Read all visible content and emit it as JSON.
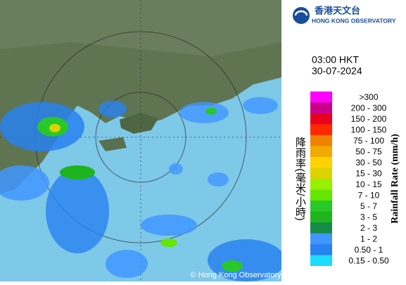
{
  "header": {
    "org_chinese": "香港天文台",
    "org_english": "HONG KONG OBSERVATORY"
  },
  "time": "03:00 HKT",
  "date": "30-07-2024",
  "legend": {
    "title_chinese": "降雨率(毫米/小時)",
    "title_english": "Rainfall Rate (mm/h)",
    "items": [
      {
        "label": ">300",
        "color": "#ff00ff"
      },
      {
        "label": "200 - 300",
        "color": "#c8008c"
      },
      {
        "label": "150 - 200",
        "color": "#e8001e"
      },
      {
        "label": "100 - 150",
        "color": "#ff2800"
      },
      {
        "label": "75 - 100",
        "color": "#f08200"
      },
      {
        "label": "50 - 75",
        "color": "#f0aa00"
      },
      {
        "label": "30 - 50",
        "color": "#ffd200"
      },
      {
        "label": "15 - 30",
        "color": "#dcd200"
      },
      {
        "label": "10 - 15",
        "color": "#96f000"
      },
      {
        "label": "7 - 10",
        "color": "#64e600"
      },
      {
        "label": "5 - 7",
        "color": "#28c828"
      },
      {
        "label": "3 - 5",
        "color": "#1eb41e"
      },
      {
        "label": "2 - 3",
        "color": "#148c46"
      },
      {
        "label": "1 - 2",
        "color": "#4196ff"
      },
      {
        "label": "0.50 - 1",
        "color": "#2882f0"
      },
      {
        "label": "0.15 - 0.50",
        "color": "#1edcff"
      }
    ]
  },
  "copyright": "© Hong Kong Observatory"
}
